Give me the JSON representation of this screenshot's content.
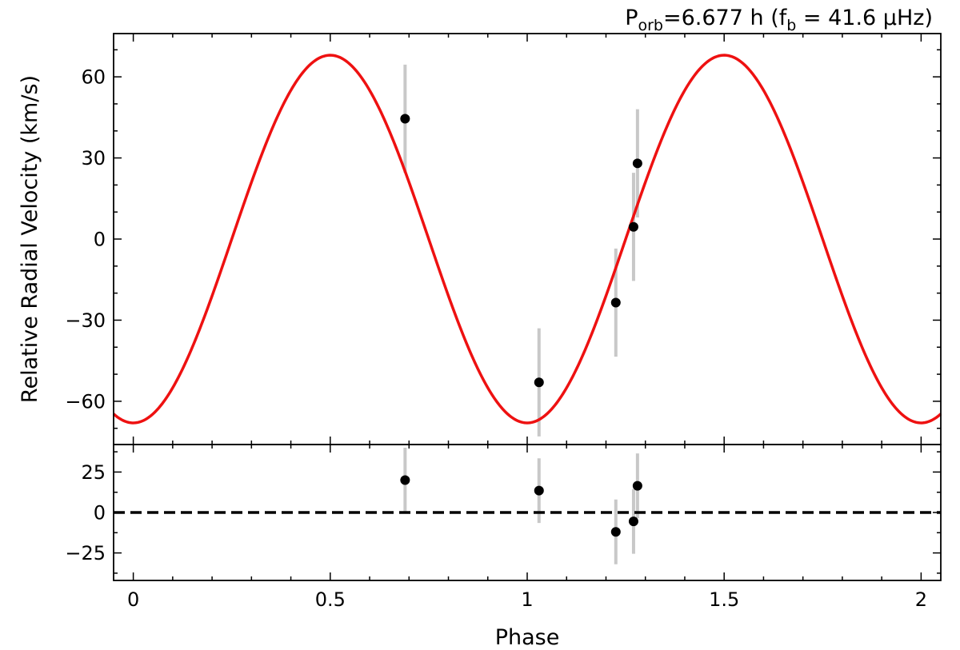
{
  "chart_data": {
    "type": "scatter",
    "title": {
      "prefix": "P",
      "prefix_sub": "orb",
      "value": "=6.677 h (f",
      "f_sub": "b",
      "rest": " = 41.6 μHz)"
    },
    "xlabel": "Phase",
    "xlim": [
      -0.05,
      2.05
    ],
    "xticks": [
      {
        "value": 0,
        "label": "0"
      },
      {
        "value": 0.5,
        "label": "0.5"
      },
      {
        "value": 1,
        "label": "1"
      },
      {
        "value": 1.5,
        "label": "1.5"
      },
      {
        "value": 2,
        "label": "2"
      }
    ],
    "xminor_step": 0.1,
    "top_panel": {
      "ylabel": "Relative Radial Velocity (km/s)",
      "ylim": [
        -76,
        76
      ],
      "yticks": [
        {
          "value": -60,
          "label": "−60"
        },
        {
          "value": -30,
          "label": "−30"
        },
        {
          "value": 0,
          "label": "0"
        },
        {
          "value": 30,
          "label": "30"
        },
        {
          "value": 60,
          "label": "60"
        }
      ],
      "yminor_step": 10,
      "model": {
        "amplitude": 68,
        "offset": 0,
        "max_phase": 0.5,
        "color": "#ee1111"
      },
      "points": [
        {
          "x": 0.69,
          "y": 44.5,
          "err": 20
        },
        {
          "x": 1.03,
          "y": -53,
          "err": 20
        },
        {
          "x": 1.225,
          "y": -23.5,
          "err": 20
        },
        {
          "x": 1.27,
          "y": 4.5,
          "err": 20
        },
        {
          "x": 1.28,
          "y": 28,
          "err": 20
        }
      ]
    },
    "bottom_panel": {
      "ylim": [
        -42,
        42
      ],
      "yticks": [
        {
          "value": -25,
          "label": "−25"
        },
        {
          "value": 0,
          "label": "0"
        },
        {
          "value": 25,
          "label": "25"
        }
      ],
      "yminor_step": 12.5,
      "reference_line": 0,
      "points": [
        {
          "x": 0.69,
          "y": 20,
          "err": 20
        },
        {
          "x": 1.03,
          "y": 13.5,
          "err": 20
        },
        {
          "x": 1.225,
          "y": -12,
          "err": 20
        },
        {
          "x": 1.27,
          "y": -5.5,
          "err": 20
        },
        {
          "x": 1.28,
          "y": 16.5,
          "err": 20
        }
      ]
    },
    "colors": {
      "points": "#000000",
      "errorbars": "#c8c8c8",
      "reference_line": "#000000"
    }
  }
}
